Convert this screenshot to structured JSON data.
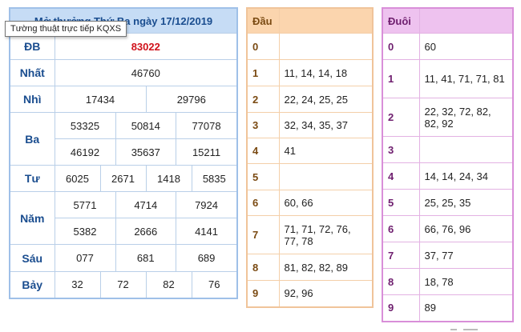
{
  "results": {
    "title": "Mở thưởng Thứ Ba ngày 17/12/2019",
    "tooltip": "Tường thuật trực tiếp KQXS",
    "rows": {
      "db": {
        "label": "ĐB",
        "values": [
          "83022"
        ]
      },
      "nhat": {
        "label": "Nhất",
        "values": [
          "46760"
        ]
      },
      "nhi": {
        "label": "Nhì",
        "values": [
          "17434",
          "29796"
        ]
      },
      "ba": {
        "label": "Ba",
        "values": [
          "53325",
          "50814",
          "77078",
          "46192",
          "35637",
          "15211"
        ]
      },
      "tu": {
        "label": "Tư",
        "values": [
          "6025",
          "2671",
          "1418",
          "5835"
        ]
      },
      "nam": {
        "label": "Năm",
        "values": [
          "5771",
          "4714",
          "7924",
          "5382",
          "2666",
          "4141"
        ]
      },
      "sau": {
        "label": "Sáu",
        "values": [
          "077",
          "681",
          "689"
        ]
      },
      "bay": {
        "label": "Bảy",
        "values": [
          "32",
          "72",
          "82",
          "76"
        ]
      }
    }
  },
  "dau": {
    "header": "Đầu",
    "rows": [
      {
        "digit": "0",
        "values": ""
      },
      {
        "digit": "1",
        "values": "11, 14, 14, 18"
      },
      {
        "digit": "2",
        "values": "22, 24, 25, 25"
      },
      {
        "digit": "3",
        "values": "32, 34, 35, 37"
      },
      {
        "digit": "4",
        "values": "41"
      },
      {
        "digit": "5",
        "values": ""
      },
      {
        "digit": "6",
        "values": "60, 66"
      },
      {
        "digit": "7",
        "values": "71, 71, 72, 76, 77, 78"
      },
      {
        "digit": "8",
        "values": "81, 82, 82, 89"
      },
      {
        "digit": "9",
        "values": "92, 96"
      }
    ]
  },
  "duoi": {
    "header": "Đuôi",
    "rows": [
      {
        "digit": "0",
        "values": "60"
      },
      {
        "digit": "1",
        "values": "11, 41, 71, 71, 81"
      },
      {
        "digit": "2",
        "values": "22, 32, 72, 82, 82, 92"
      },
      {
        "digit": "3",
        "values": ""
      },
      {
        "digit": "4",
        "values": "14, 14, 24, 34"
      },
      {
        "digit": "5",
        "values": "25, 25, 35"
      },
      {
        "digit": "6",
        "values": "66, 76, 96"
      },
      {
        "digit": "7",
        "values": "37, 77"
      },
      {
        "digit": "8",
        "values": "18, 78"
      },
      {
        "digit": "9",
        "values": "89"
      }
    ]
  },
  "colors": {
    "results_header_bg": "#c6dcf5",
    "label_text": "#1a4d8f",
    "special_prize": "#d0121b",
    "dau_header_bg": "#fbd5ae",
    "duoi_header_bg": "#eec2ef"
  }
}
